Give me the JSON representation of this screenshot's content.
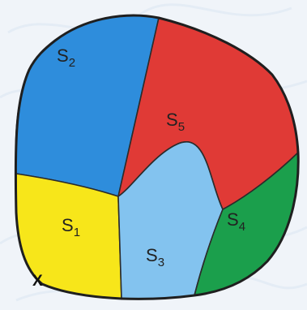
{
  "diagram": {
    "corner_label": "X",
    "regions": [
      {
        "id": "s1",
        "letter": "S",
        "subscript": "1",
        "color": "#f7e61a"
      },
      {
        "id": "s2",
        "letter": "S",
        "subscript": "2",
        "color": "#2e8ddc"
      },
      {
        "id": "s3",
        "letter": "S",
        "subscript": "3",
        "color": "#83c3ef"
      },
      {
        "id": "s4",
        "letter": "S",
        "subscript": "4",
        "color": "#1b9f4c"
      },
      {
        "id": "s5",
        "letter": "S",
        "subscript": "5",
        "color": "#e03a36"
      }
    ],
    "background_color": "#eaf1f8",
    "outline_color": "#1f1f1f"
  }
}
